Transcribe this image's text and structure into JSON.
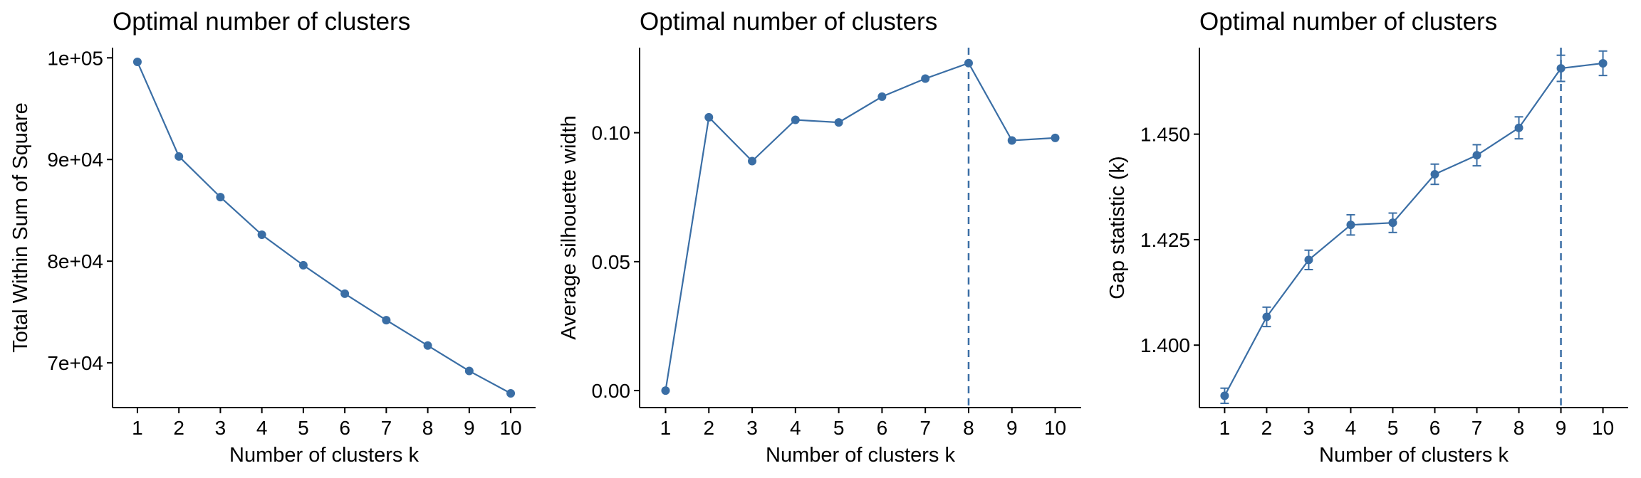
{
  "chart_data": [
    {
      "type": "line",
      "title": "Optimal number of clusters",
      "xlabel": "Number of clusters k",
      "ylabel": "Total Within Sum of Square",
      "categories": [
        "1",
        "2",
        "3",
        "4",
        "5",
        "6",
        "7",
        "8",
        "9",
        "10"
      ],
      "values": [
        99600,
        90300,
        86300,
        82600,
        79600,
        76800,
        74200,
        71700,
        69200,
        67000
      ],
      "ylim": [
        65600,
        101000
      ],
      "yticks": [
        70000,
        80000,
        90000,
        100000
      ],
      "ytick_labels": [
        "7e+04",
        "8e+04",
        "9e+04",
        "1e+05"
      ],
      "color": "#3a6ea5",
      "grid": false
    },
    {
      "type": "line",
      "title": "Optimal number of clusters",
      "xlabel": "Number of clusters k",
      "ylabel": "Average silhouette width",
      "categories": [
        "1",
        "2",
        "3",
        "4",
        "5",
        "6",
        "7",
        "8",
        "9",
        "10"
      ],
      "values": [
        0.0,
        0.106,
        0.089,
        0.105,
        0.104,
        0.114,
        0.121,
        0.127,
        0.097,
        0.098
      ],
      "ylim": [
        -0.0066,
        0.133
      ],
      "yticks": [
        0.0,
        0.05,
        0.1
      ],
      "ytick_labels": [
        "0.00",
        "0.05",
        "0.10"
      ],
      "vline": "8",
      "color": "#3a6ea5",
      "grid": false
    },
    {
      "type": "line",
      "title": "Optimal number of clusters",
      "xlabel": "Number of clusters k",
      "ylabel": "Gap statistic (k)",
      "categories": [
        "1",
        "2",
        "3",
        "4",
        "5",
        "6",
        "7",
        "8",
        "9",
        "10"
      ],
      "values": [
        1.388,
        1.4067,
        1.4202,
        1.4285,
        1.429,
        1.4405,
        1.445,
        1.4515,
        1.4656,
        1.4668
      ],
      "error": [
        0.0018,
        0.0023,
        0.0023,
        0.0024,
        0.0023,
        0.0024,
        0.0025,
        0.0026,
        0.0031,
        0.0029
      ],
      "ylim": [
        1.3852,
        1.4705
      ],
      "yticks": [
        1.4,
        1.425,
        1.45
      ],
      "ytick_labels": [
        "1.400",
        "1.425",
        "1.450"
      ],
      "vline": "9",
      "color": "#3a6ea5",
      "grid": false
    }
  ]
}
